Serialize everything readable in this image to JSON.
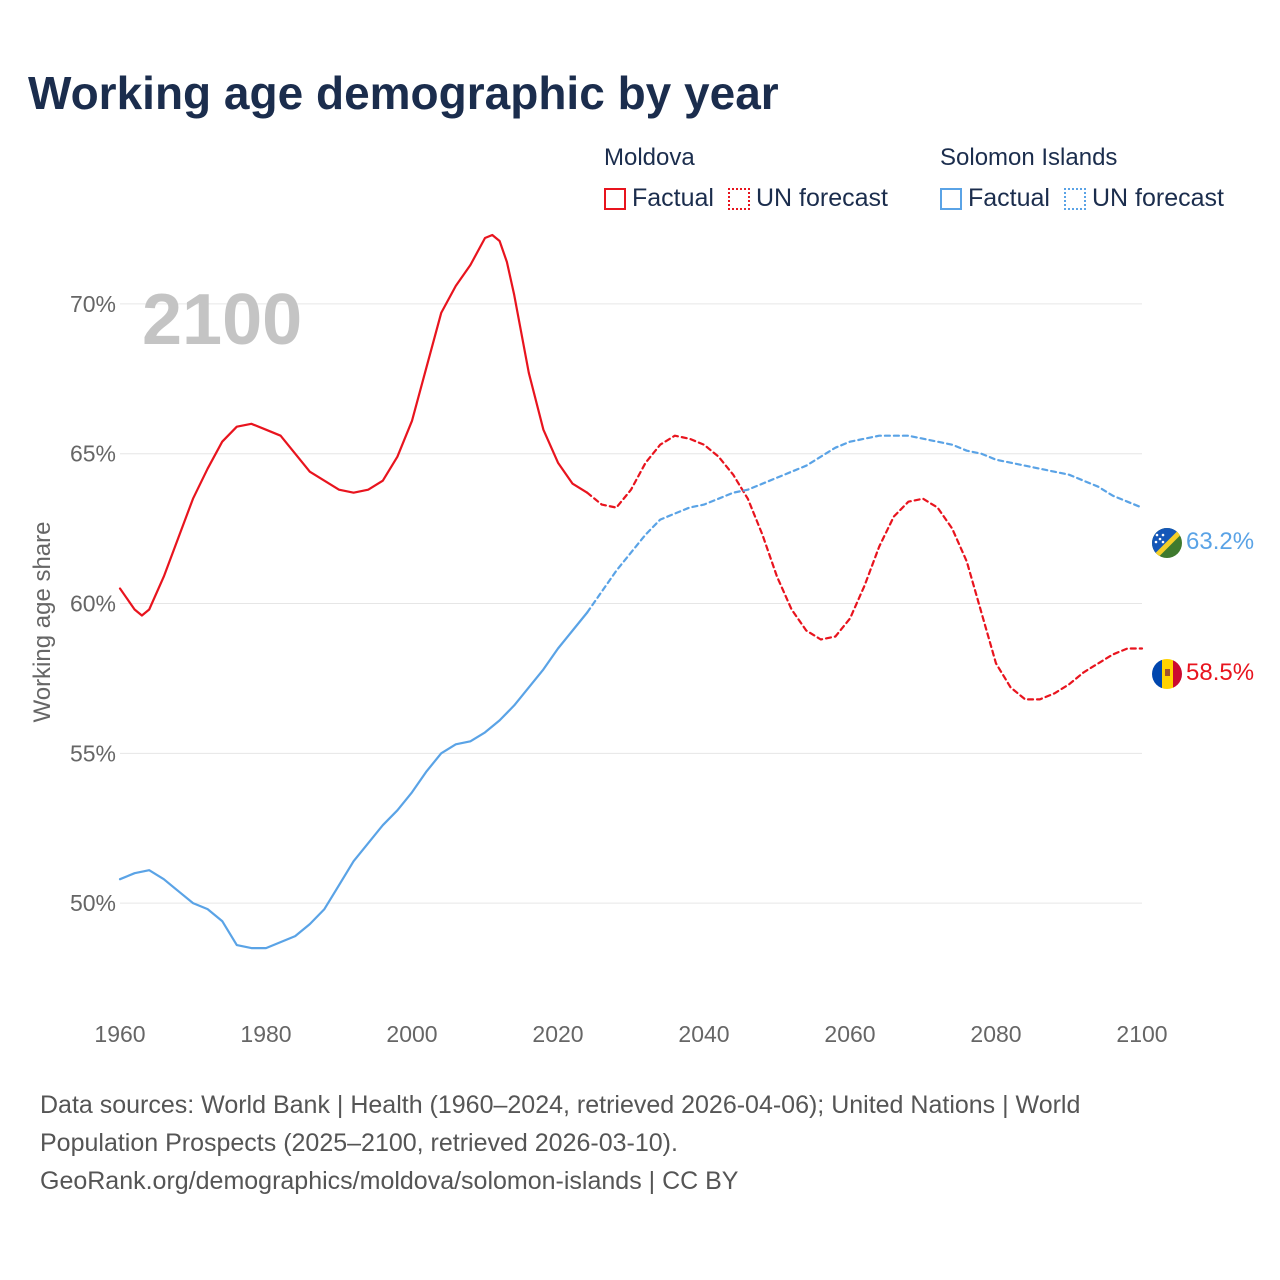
{
  "title": "Working age demographic by year",
  "year_label": "2100",
  "legend": {
    "factual_label": "Factual",
    "forecast_label": "UN forecast",
    "groups": [
      {
        "name": "Moldova",
        "color": "#e8141e"
      },
      {
        "name": "Solomon Islands",
        "color": "#5aa3e6"
      }
    ]
  },
  "end_labels": {
    "solomon": "63.2%",
    "moldova": "58.5%"
  },
  "flags": {
    "solomon": "solomon-islands-flag",
    "moldova": "moldova-flag"
  },
  "sources": {
    "line1": "Data sources: World Bank | Health (1960–2024, retrieved 2026-04-06); United Nations | World",
    "line2": "Population Prospects (2025–2100, retrieved 2026-03-10).",
    "line3": "GeoRank.org/demographics/moldova/solomon-islands | CC BY"
  },
  "chart_data": {
    "type": "line",
    "title": "Working age demographic by year",
    "xlabel": "",
    "ylabel": "Working age share",
    "xlim": [
      1960,
      2100
    ],
    "ylim": [
      46.5,
      72.5
    ],
    "x_ticks": [
      1960,
      1980,
      2000,
      2020,
      2040,
      2060,
      2080,
      2100
    ],
    "x_tick_labels": [
      "1960",
      "1980",
      "2000",
      "2020",
      "2040",
      "2060",
      "2080",
      "2100"
    ],
    "y_ticks": [
      50,
      55,
      60,
      65,
      70
    ],
    "y_tick_labels": [
      "50%",
      "55%",
      "60%",
      "65%",
      "70%"
    ],
    "grid": true,
    "series": [
      {
        "name": "Moldova",
        "kind": "factual",
        "color": "#e8141e",
        "x": [
          1960,
          1962,
          1963,
          1964,
          1966,
          1968,
          1970,
          1972,
          1974,
          1976,
          1978,
          1980,
          1982,
          1984,
          1986,
          1988,
          1990,
          1992,
          1994,
          1996,
          1998,
          2000,
          2002,
          2004,
          2006,
          2008,
          2010,
          2011,
          2012,
          2013,
          2014,
          2016,
          2018,
          2020,
          2022,
          2024
        ],
        "y": [
          60.5,
          59.8,
          59.6,
          59.8,
          60.9,
          62.2,
          63.5,
          64.5,
          65.4,
          65.9,
          66.0,
          65.8,
          65.6,
          65.0,
          64.4,
          64.1,
          63.8,
          63.7,
          63.8,
          64.1,
          64.9,
          66.1,
          67.9,
          69.7,
          70.6,
          71.3,
          72.2,
          72.3,
          72.1,
          71.4,
          70.3,
          67.7,
          65.8,
          64.7,
          64.0,
          63.7
        ]
      },
      {
        "name": "Moldova",
        "kind": "forecast",
        "color": "#e8141e",
        "x": [
          2024,
          2026,
          2028,
          2030,
          2032,
          2034,
          2036,
          2038,
          2040,
          2042,
          2044,
          2046,
          2048,
          2050,
          2052,
          2054,
          2056,
          2058,
          2060,
          2062,
          2064,
          2066,
          2068,
          2070,
          2072,
          2074,
          2076,
          2078,
          2080,
          2082,
          2084,
          2086,
          2088,
          2090,
          2092,
          2094,
          2096,
          2098,
          2100
        ],
        "y": [
          63.7,
          63.3,
          63.2,
          63.8,
          64.7,
          65.3,
          65.6,
          65.5,
          65.3,
          64.9,
          64.3,
          63.5,
          62.3,
          60.9,
          59.8,
          59.1,
          58.8,
          58.9,
          59.5,
          60.6,
          61.9,
          62.9,
          63.4,
          63.5,
          63.2,
          62.5,
          61.4,
          59.7,
          58.0,
          57.2,
          56.8,
          56.8,
          57.0,
          57.3,
          57.7,
          58.0,
          58.3,
          58.5,
          58.5
        ]
      },
      {
        "name": "Solomon Islands",
        "kind": "factual",
        "color": "#5aa3e6",
        "x": [
          1960,
          1962,
          1964,
          1966,
          1968,
          1970,
          1972,
          1974,
          1976,
          1978,
          1980,
          1982,
          1984,
          1986,
          1988,
          1990,
          1992,
          1994,
          1996,
          1998,
          2000,
          2002,
          2004,
          2006,
          2008,
          2010,
          2012,
          2014,
          2016,
          2018,
          2020,
          2022,
          2024
        ],
        "y": [
          50.8,
          51.0,
          51.1,
          50.8,
          50.4,
          50.0,
          49.8,
          49.4,
          48.6,
          48.5,
          48.5,
          48.7,
          48.9,
          49.3,
          49.8,
          50.6,
          51.4,
          52.0,
          52.6,
          53.1,
          53.7,
          54.4,
          55.0,
          55.3,
          55.4,
          55.7,
          56.1,
          56.6,
          57.2,
          57.8,
          58.5,
          59.1,
          59.7
        ]
      },
      {
        "name": "Solomon Islands",
        "kind": "forecast",
        "color": "#5aa3e6",
        "x": [
          2024,
          2026,
          2028,
          2030,
          2032,
          2034,
          2036,
          2038,
          2040,
          2042,
          2044,
          2046,
          2048,
          2050,
          2052,
          2054,
          2056,
          2058,
          2060,
          2062,
          2064,
          2066,
          2068,
          2070,
          2072,
          2074,
          2076,
          2078,
          2080,
          2082,
          2084,
          2086,
          2088,
          2090,
          2092,
          2094,
          2096,
          2098,
          2100
        ],
        "y": [
          59.7,
          60.4,
          61.1,
          61.7,
          62.3,
          62.8,
          63.0,
          63.2,
          63.3,
          63.5,
          63.7,
          63.8,
          64.0,
          64.2,
          64.4,
          64.6,
          64.9,
          65.2,
          65.4,
          65.5,
          65.6,
          65.6,
          65.6,
          65.5,
          65.4,
          65.3,
          65.1,
          65.0,
          64.8,
          64.7,
          64.6,
          64.5,
          64.4,
          64.3,
          64.1,
          63.9,
          63.6,
          63.4,
          63.2
        ]
      }
    ],
    "end_values": {
      "Moldova": 58.5,
      "Solomon Islands": 63.2
    }
  }
}
